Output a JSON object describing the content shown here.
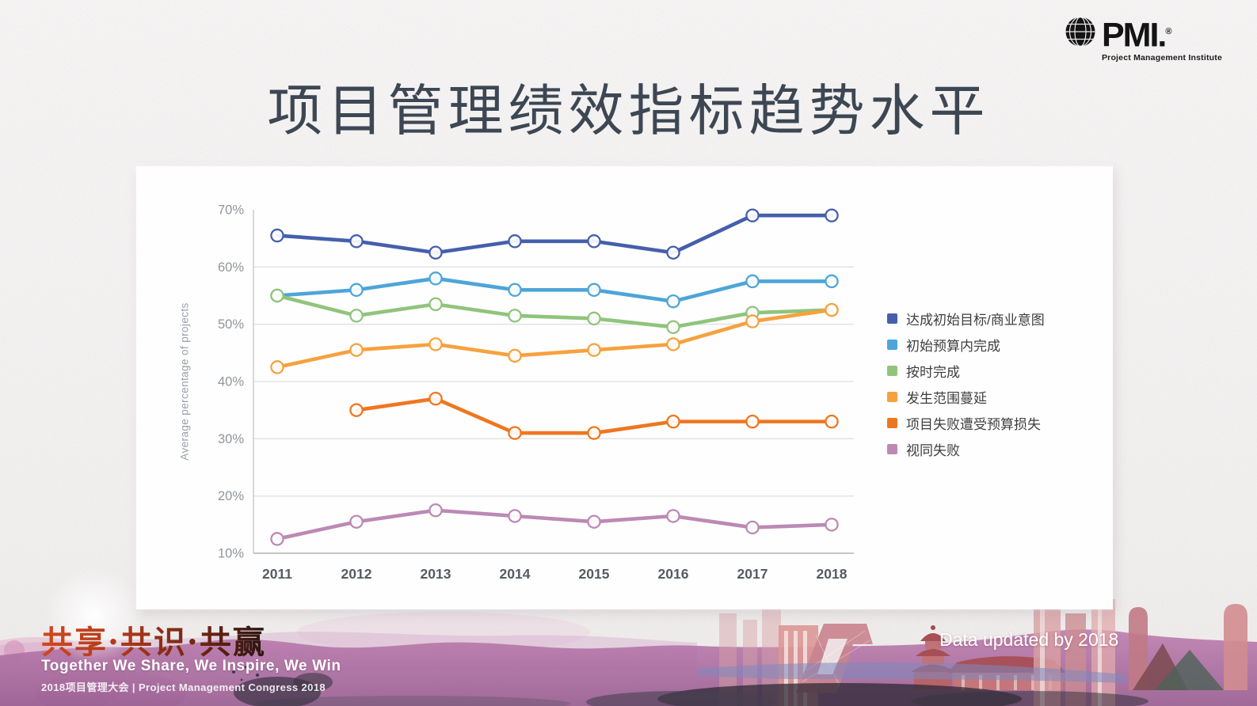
{
  "logo": {
    "brand": "PMI.",
    "reg": "®",
    "subtitle": "Project Management Institute"
  },
  "title": "项目管理绩效指标趋势水平",
  "chart_data": {
    "type": "line",
    "title": "项目管理绩效指标趋势水平",
    "x": [
      2011,
      2012,
      2013,
      2014,
      2015,
      2016,
      2017,
      2018
    ],
    "xlabel": "",
    "ylabel": "Average percentage of projects",
    "ylim": [
      10,
      70
    ],
    "y_ticks": [
      "70%",
      "60%",
      "50%",
      "40%",
      "30%",
      "20%",
      "10%"
    ],
    "grid": "horizontal",
    "legend_position": "right",
    "marker": "open-circle",
    "series": [
      {
        "name": "达成初始目标/商业意图",
        "color": "#455FAC",
        "values": [
          65.5,
          64.5,
          62.5,
          64.5,
          64.5,
          62.5,
          69,
          69
        ]
      },
      {
        "name": "初始预算内完成",
        "color": "#4DA5D8",
        "values": [
          55,
          56,
          58,
          56,
          56,
          54,
          57.5,
          57.5
        ]
      },
      {
        "name": "按时完成",
        "color": "#90C47C",
        "values": [
          55,
          51.5,
          53.5,
          51.5,
          51,
          49.5,
          52,
          52.5
        ]
      },
      {
        "name": "发生范围蔓延",
        "color": "#F7A13E",
        "values": [
          42.5,
          45.5,
          46.5,
          44.5,
          45.5,
          46.5,
          50.5,
          52.5
        ]
      },
      {
        "name": "项目失败遭受预算损失",
        "color": "#EF7620",
        "values": [
          null,
          35,
          37,
          31,
          31,
          33,
          33,
          33
        ]
      },
      {
        "name": "视同失败",
        "color": "#BC89B4",
        "values": [
          12.5,
          15.5,
          17.5,
          16.5,
          15.5,
          16.5,
          14.5,
          15
        ]
      }
    ]
  },
  "footer": {
    "calligraphy": "共享·共识·共赢",
    "tagline": "Together We Share, We Inspire, We Win",
    "congress": "2018项目管理大会 | Project Management Congress 2018",
    "data_note": "Data updated by 2018"
  },
  "colors": {
    "title_text": "#3d4754",
    "panel_background": "#fefefe",
    "slide_background": "#f8f6f5"
  }
}
